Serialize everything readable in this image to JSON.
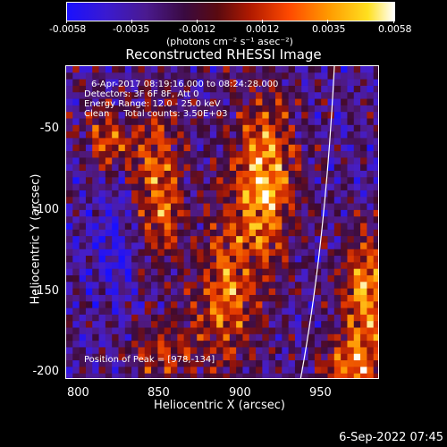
{
  "colorbar": {
    "ticks": [
      "-0.0058",
      "-0.0035",
      "-0.0012",
      "0.0012",
      "0.0035",
      "0.0058"
    ],
    "units": "(photons cm⁻² s⁻¹ asec⁻²)"
  },
  "title": "Reconstructed RHESSI Image",
  "info": {
    "time": "6-Apr-2017 08:19:16.000 to 08:24:28.000",
    "detectors": "Detectors: 3F 6F 8F, Att 0",
    "energy": "Energy Range: 12.0 - 25.0 keV",
    "clean": "Clean     Total counts: 3.50E+03"
  },
  "peak": "Position of Peak = [978,-134]",
  "axes": {
    "xlabel": "Heliocentric X (arcsec)",
    "ylabel": "Heliocentric Y (arcsec)",
    "xticks": [
      "800",
      "850",
      "900",
      "950"
    ],
    "yticks": [
      "-50",
      "-100",
      "-150",
      "-200"
    ]
  },
  "footer_date": "6-Sep-2022 07:45"
}
